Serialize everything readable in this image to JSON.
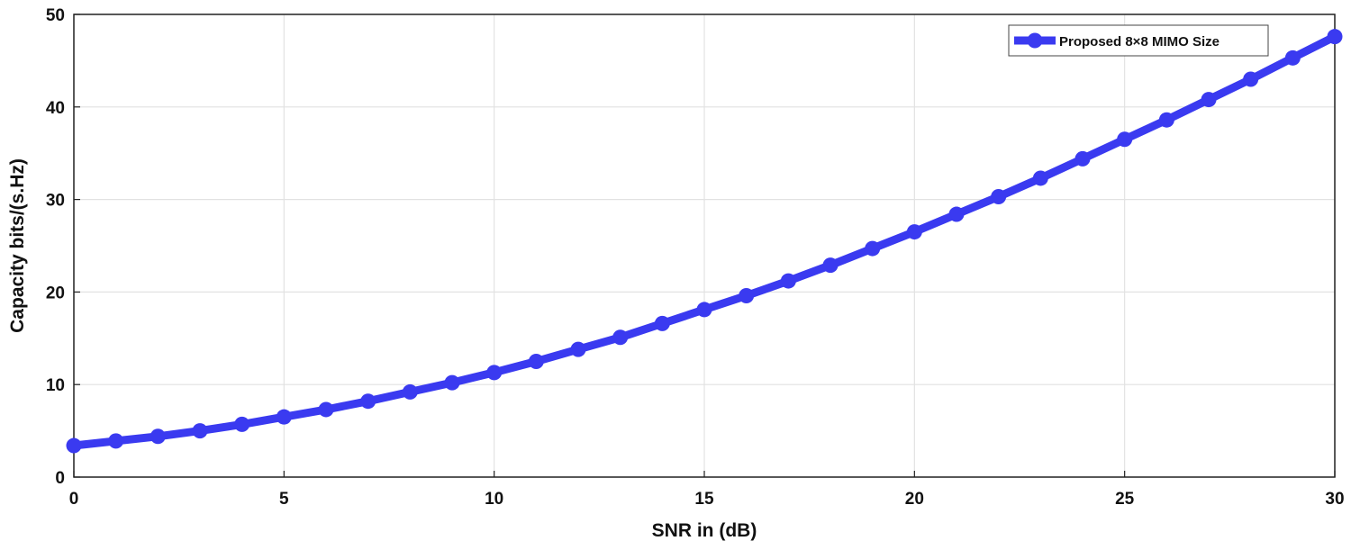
{
  "chart_data": {
    "type": "line",
    "title": "",
    "xlabel": "SNR in (dB)",
    "ylabel": "Capacity bits/(s.Hz)",
    "xlim": [
      0,
      30
    ],
    "ylim": [
      0,
      50
    ],
    "x_ticks": [
      0,
      5,
      10,
      15,
      20,
      25,
      30
    ],
    "y_ticks": [
      0,
      10,
      20,
      30,
      40,
      50
    ],
    "grid": true,
    "legend_position": "top-right",
    "x": [
      0,
      1,
      2,
      3,
      4,
      5,
      6,
      7,
      8,
      9,
      10,
      11,
      12,
      13,
      14,
      15,
      16,
      17,
      18,
      19,
      20,
      21,
      22,
      23,
      24,
      25,
      26,
      27,
      28,
      29,
      30
    ],
    "series": [
      {
        "name": "Proposed 8×8 MIMO Size",
        "color": "#3a3af0",
        "marker": "circle",
        "values": [
          3.4,
          3.9,
          4.4,
          5.0,
          5.7,
          6.5,
          7.3,
          8.2,
          9.2,
          10.2,
          11.3,
          12.5,
          13.8,
          15.1,
          16.6,
          18.1,
          19.6,
          21.2,
          22.9,
          24.7,
          26.5,
          28.4,
          30.3,
          32.3,
          34.4,
          36.5,
          38.6,
          40.8,
          43.0,
          45.3,
          47.6
        ]
      }
    ]
  }
}
